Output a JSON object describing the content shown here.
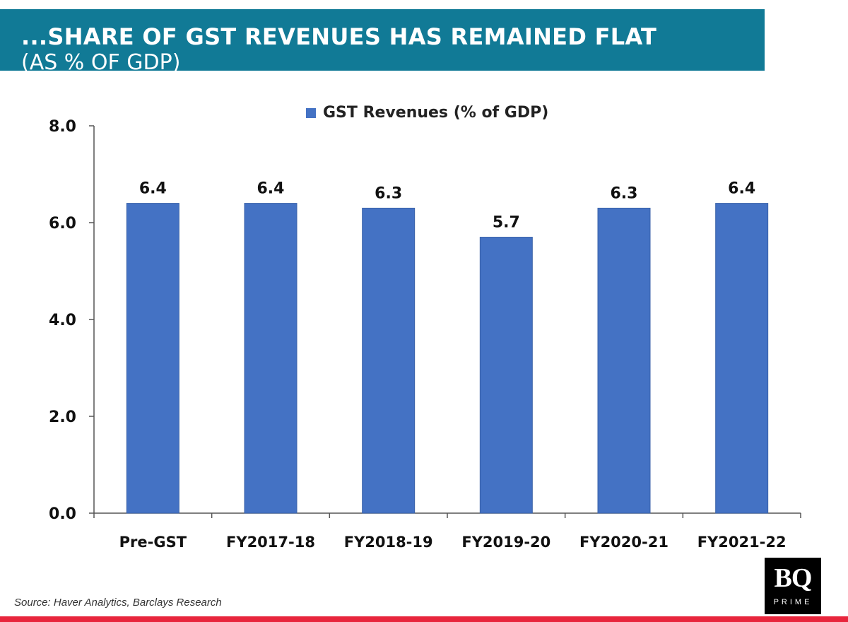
{
  "header": {
    "title": "...SHARE OF GST REVENUES HAS REMAINED FLAT",
    "subtitle": "(AS % OF GDP)"
  },
  "colors": {
    "header_bg": "#117a96",
    "bar": "#4472c4",
    "bottom_bar": "#e8253c"
  },
  "chart_data": {
    "type": "bar",
    "categories": [
      "Pre-GST",
      "FY2017-18",
      "FY2018-19",
      "FY2019-20",
      "FY2020-21",
      "FY2021-22"
    ],
    "series": [
      {
        "name": "GST Revenues (% of GDP)",
        "values": [
          6.4,
          6.4,
          6.3,
          5.7,
          6.3,
          6.4
        ]
      }
    ],
    "data_labels": [
      "6.4",
      "6.4",
      "6.3",
      "5.7",
      "6.3",
      "6.4"
    ],
    "y_ticks": [
      "0.0",
      "2.0",
      "4.0",
      "6.0",
      "8.0"
    ],
    "ylim": [
      0,
      8
    ],
    "grid": false,
    "legend_position": "top-center"
  },
  "source": "Source: Haver Analytics, Barclays Research",
  "logo": {
    "main": "BQ",
    "sub": "PRIME"
  }
}
